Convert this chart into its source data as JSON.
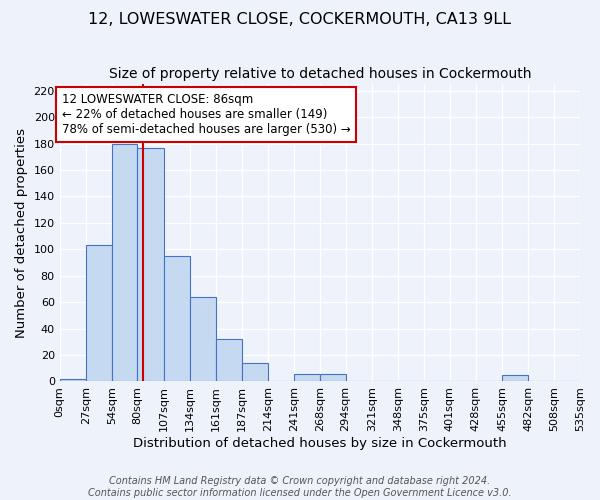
{
  "title": "12, LOWESWATER CLOSE, COCKERMOUTH, CA13 9LL",
  "subtitle": "Size of property relative to detached houses in Cockermouth",
  "xlabel": "Distribution of detached houses by size in Cockermouth",
  "ylabel": "Number of detached properties",
  "footer_line1": "Contains HM Land Registry data © Crown copyright and database right 2024.",
  "footer_line2": "Contains public sector information licensed under the Open Government Licence v3.0.",
  "bin_edges": [
    0,
    27,
    54,
    80,
    107,
    134,
    161,
    187,
    214,
    241,
    268,
    294,
    321,
    348,
    375,
    401,
    428,
    455,
    482,
    508,
    535
  ],
  "bin_counts": [
    2,
    103,
    180,
    177,
    95,
    64,
    32,
    14,
    0,
    6,
    6,
    0,
    0,
    0,
    0,
    0,
    0,
    5,
    0,
    0
  ],
  "bar_facecolor": "#c5d9f1",
  "bar_edgecolor": "#4472c4",
  "property_value": 86,
  "vline_color": "#cc0000",
  "annotation_line1": "12 LOWESWATER CLOSE: 86sqm",
  "annotation_line2": "← 22% of detached houses are smaller (149)",
  "annotation_line3": "78% of semi-detached houses are larger (530) →",
  "annotation_boxcolor": "white",
  "annotation_boxedge": "#cc0000",
  "ylim": [
    0,
    225
  ],
  "yticks": [
    0,
    20,
    40,
    60,
    80,
    100,
    120,
    140,
    160,
    180,
    200,
    220
  ],
  "tick_labels": [
    "0sqm",
    "27sqm",
    "54sqm",
    "80sqm",
    "107sqm",
    "134sqm",
    "161sqm",
    "187sqm",
    "214sqm",
    "241sqm",
    "268sqm",
    "294sqm",
    "321sqm",
    "348sqm",
    "375sqm",
    "401sqm",
    "428sqm",
    "455sqm",
    "482sqm",
    "508sqm",
    "535sqm"
  ],
  "background_color": "#eef2fa",
  "grid_color": "white",
  "title_fontsize": 11.5,
  "subtitle_fontsize": 10,
  "axis_label_fontsize": 9.5,
  "tick_fontsize": 8,
  "footer_fontsize": 7,
  "annotation_fontsize": 8.5
}
